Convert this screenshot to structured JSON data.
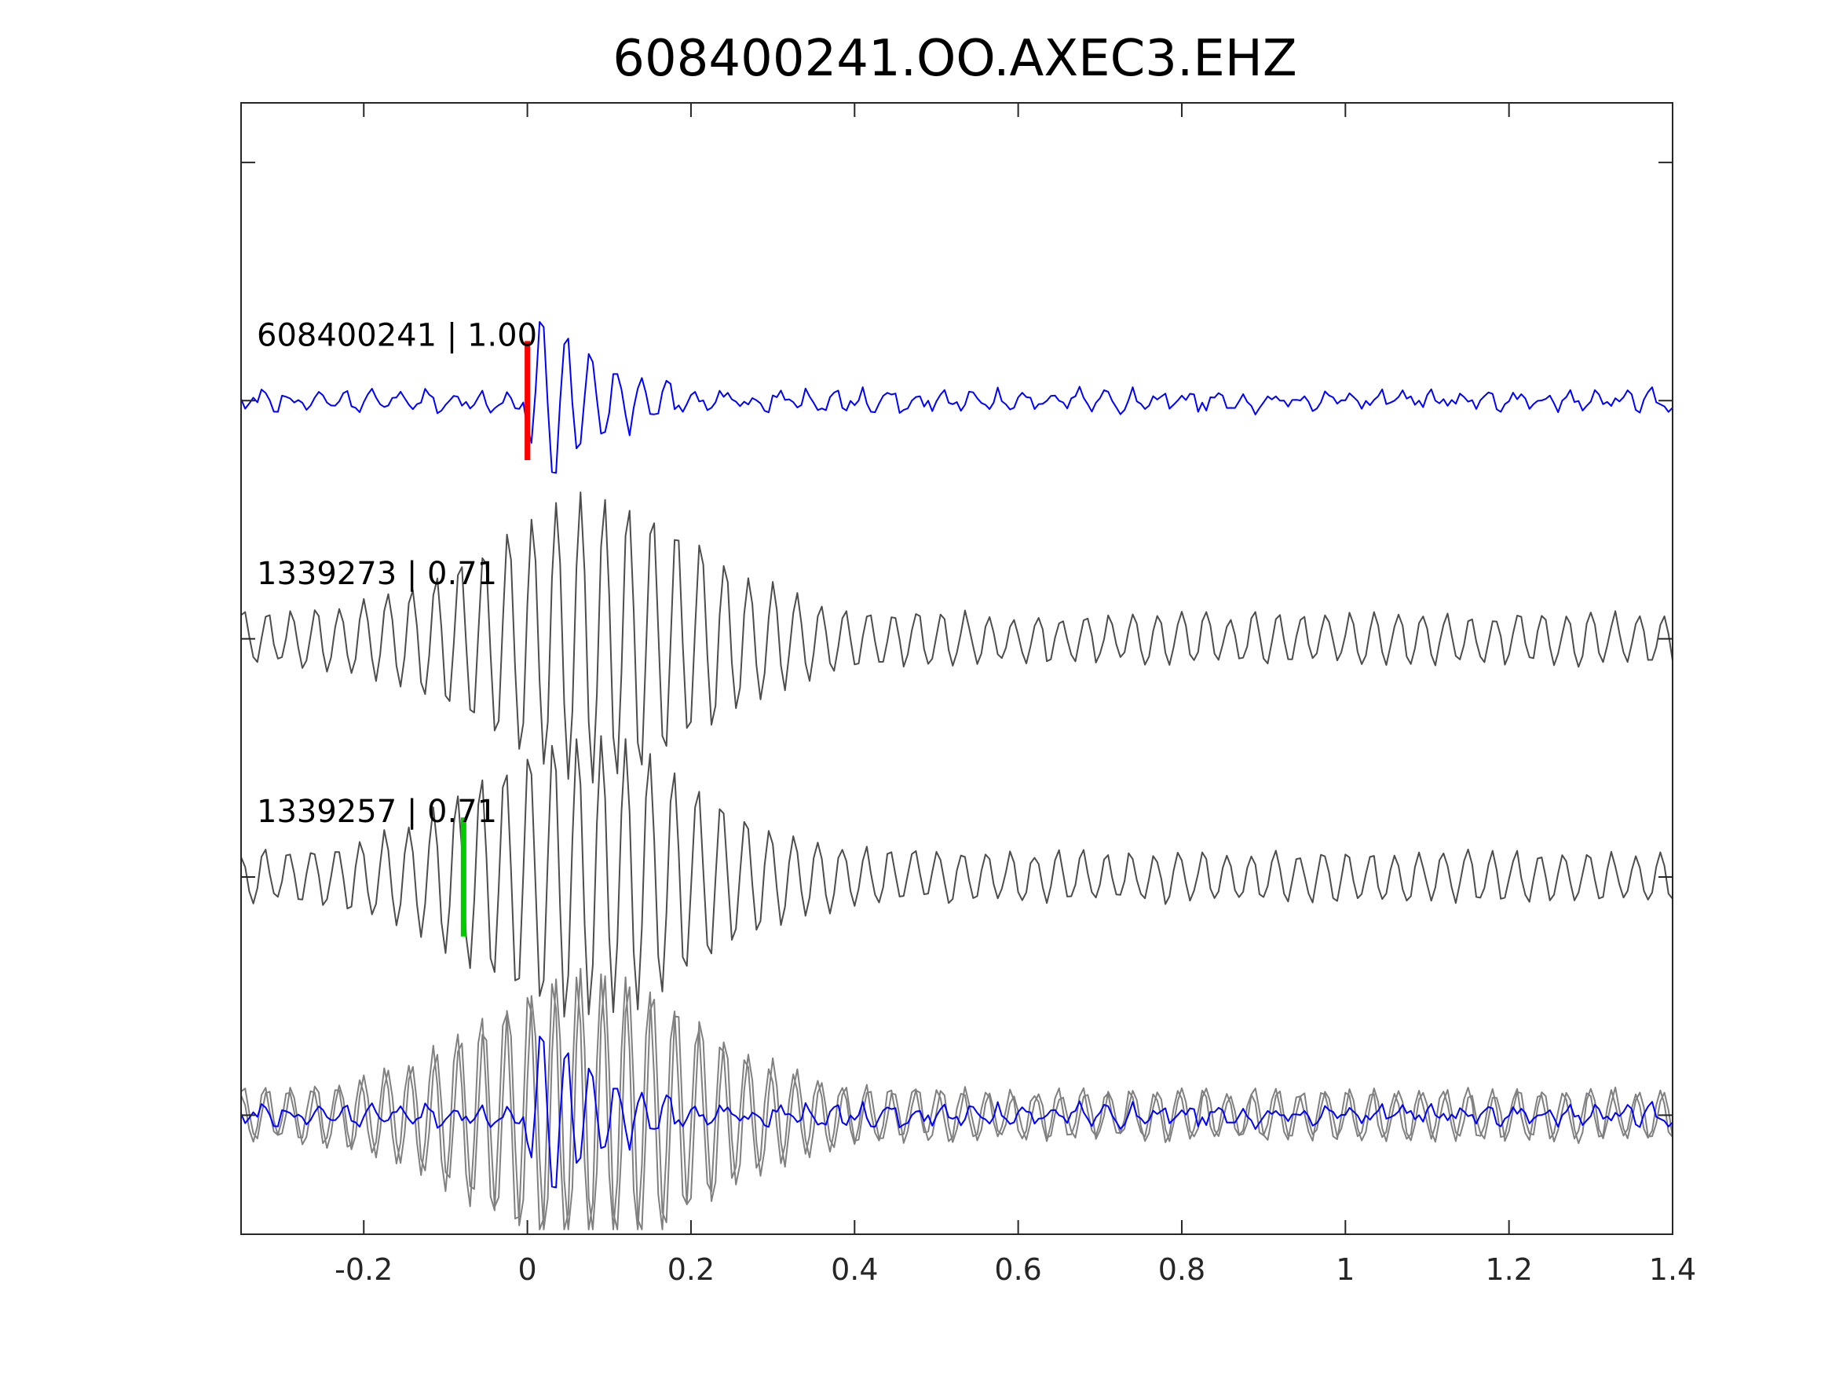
{
  "chart_data": {
    "type": "line",
    "title": "608400241.OO.AXEC3.EHZ",
    "xlabel": "",
    "ylabel": "",
    "xlim": [
      -0.35,
      1.4
    ],
    "ylim": [
      -0.5,
      4.25
    ],
    "x_ticks": [
      -0.2,
      0,
      0.2,
      0.4,
      0.6,
      0.8,
      1,
      1.2,
      1.4
    ],
    "x_tick_labels": [
      "-0.2",
      "0",
      "0.2",
      "0.4",
      "0.6",
      "0.8",
      "1",
      "1.2",
      "1.4"
    ],
    "y_ticks": [
      0,
      1,
      2,
      3,
      4
    ],
    "grid": false,
    "sample_interval": 0.005,
    "colors": {
      "reference": "#0000ff",
      "match": "#4d4d4d",
      "overlay": "#808080",
      "pick_reference": "#ff0000",
      "pick_match": "#00cc00"
    },
    "traces": [
      {
        "label": "608400241 | 1.00",
        "offset": 3.0,
        "color": "#0000ff",
        "pick_time": 0.0,
        "pick_color": "#ff0000"
      },
      {
        "label": "1339273 | 0.71",
        "offset": 2.0,
        "color": "#4d4d4d"
      },
      {
        "label": "1339257 | 0.71",
        "offset": 1.0,
        "color": "#4d4d4d",
        "pick_time": -0.078,
        "pick_color": "#00cc00"
      }
    ],
    "overlay": {
      "offset": 0.0,
      "description": "superposition of all three traces"
    }
  }
}
